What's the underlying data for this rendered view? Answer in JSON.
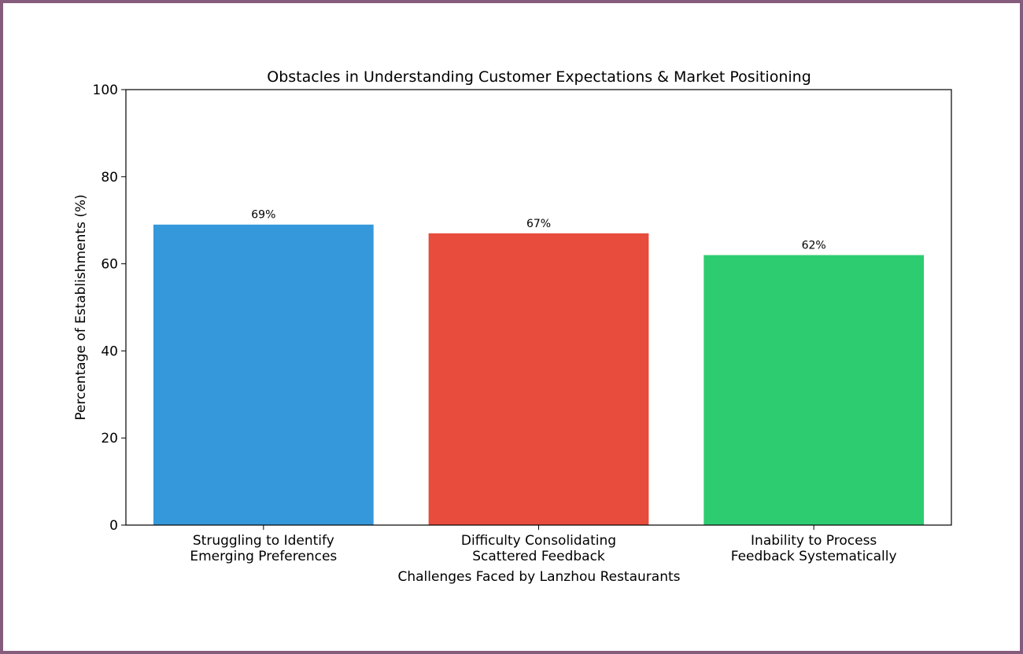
{
  "chart_data": {
    "type": "bar",
    "title": "Obstacles in Understanding Customer Expectations & Market Positioning",
    "xlabel": "Challenges Faced by Lanzhou Restaurants",
    "ylabel": "Percentage of Establishments (%)",
    "ylim": [
      0,
      100
    ],
    "yticks": [
      0,
      20,
      40,
      60,
      80,
      100
    ],
    "grid": false,
    "categories": [
      [
        "Struggling to Identify",
        "Emerging Preferences"
      ],
      [
        "Difficulty Consolidating",
        "Scattered Feedback"
      ],
      [
        "Inability to Process",
        "Feedback Systematically"
      ]
    ],
    "values": [
      69,
      67,
      62
    ],
    "data_labels": [
      "69%",
      "67%",
      "62%"
    ],
    "colors": [
      "#3498db",
      "#e74c3c",
      "#2ecc71"
    ]
  },
  "frame_color": "#865c7c"
}
